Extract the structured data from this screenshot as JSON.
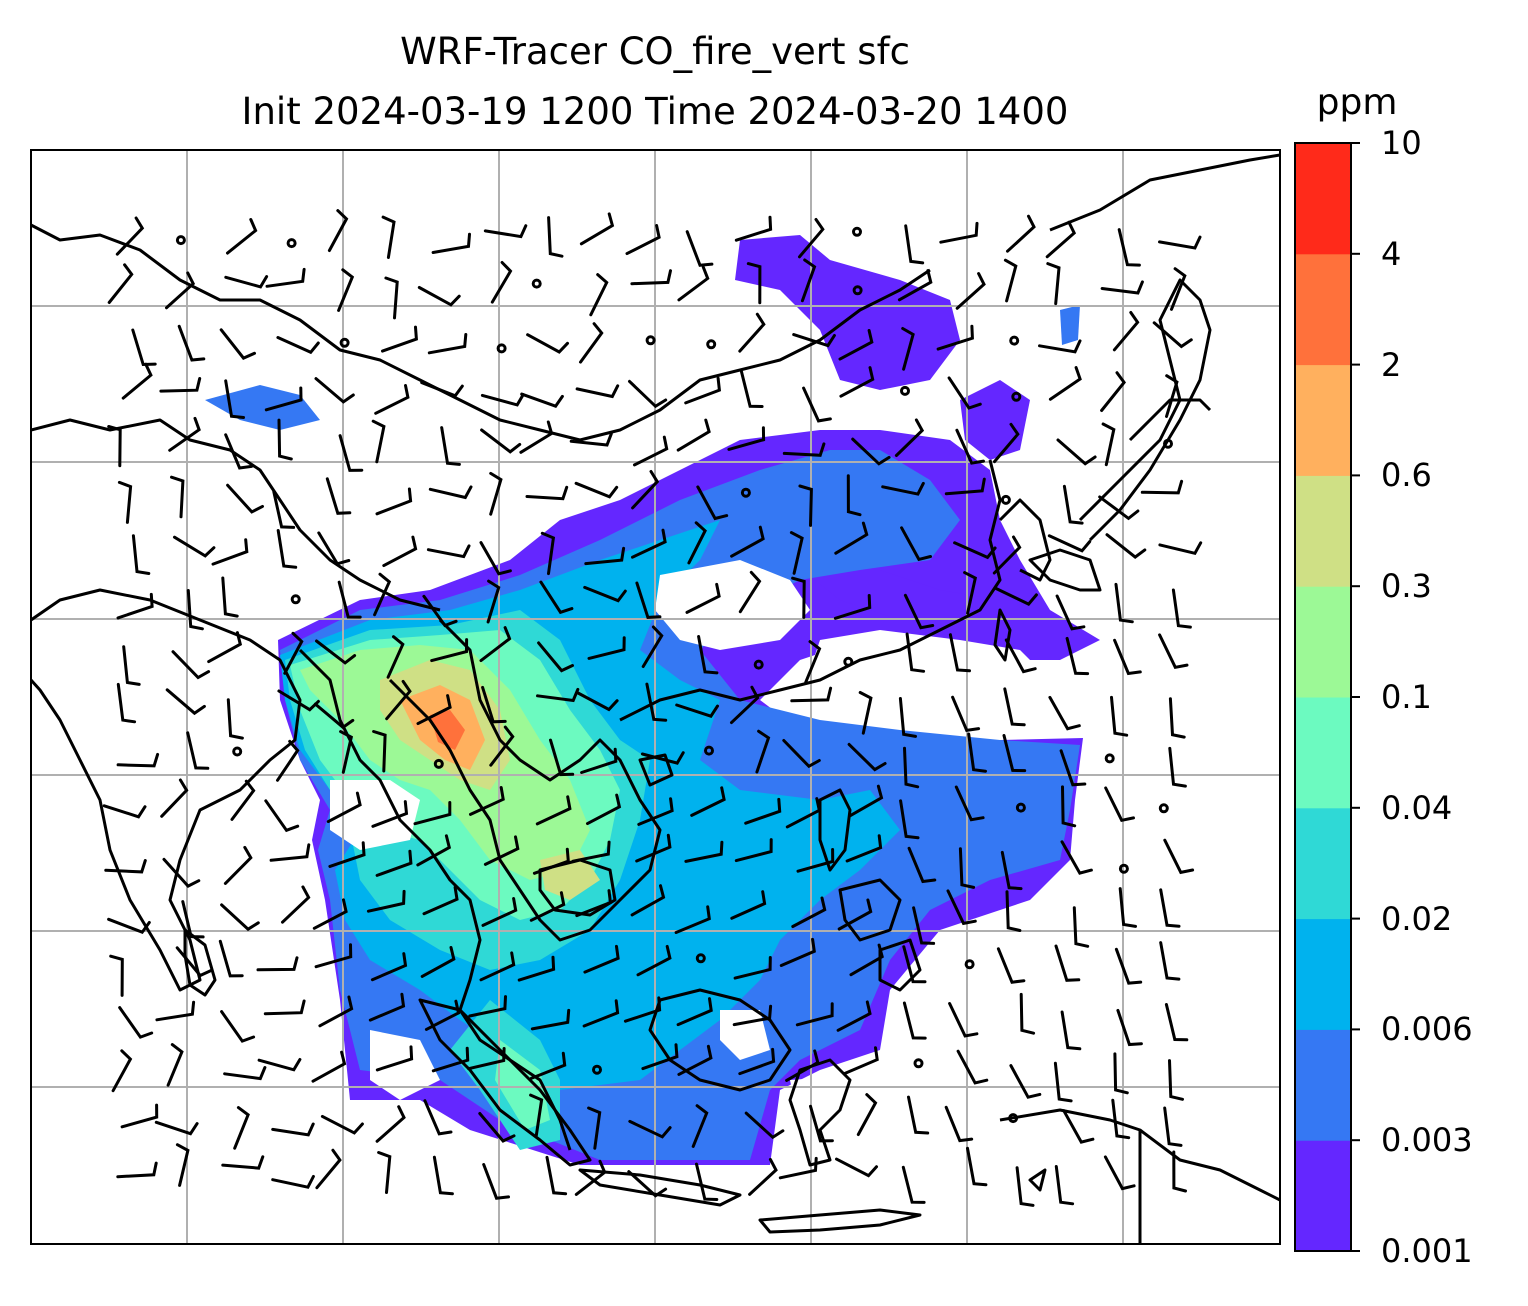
{
  "title": {
    "line1": "WRF-Tracer CO_fire_vert sfc",
    "line2": "Init 2024-03-19 1200 Time 2024-03-20 1400"
  },
  "colorbar": {
    "unit": "ppm",
    "levels": [
      "0.001",
      "0.003",
      "0.006",
      "0.02",
      "0.04",
      "0.1",
      "0.3",
      "0.6",
      "2",
      "4",
      "10"
    ],
    "colors": [
      "#6427ff",
      "#3578f3",
      "#00b2ee",
      "#2fd9d6",
      "#6cfac0",
      "#9cf996",
      "#cfe085",
      "#ffb05e",
      "#ff713b",
      "#ff2a1a"
    ]
  },
  "map": {
    "colors": {
      "frame": "#000000",
      "grid": "#b0b0b0",
      "coast": "#000000",
      "barb": "#000000"
    },
    "field": "CO fire tracer concentration at surface with wind barbs over Southeast Asia"
  }
}
